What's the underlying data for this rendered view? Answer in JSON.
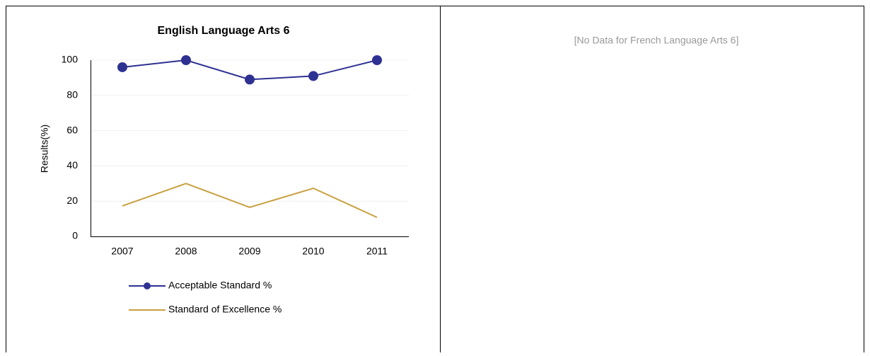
{
  "chart_data": {
    "type": "line",
    "title": "English Language Arts 6",
    "ylabel": "Results(%)",
    "categories": [
      "2007",
      "2008",
      "2009",
      "2010",
      "2011"
    ],
    "series": [
      {
        "name": "Acceptable Standard %",
        "color": "#2e3192",
        "markers": true,
        "values": [
          96,
          100,
          89,
          91,
          100
        ]
      },
      {
        "name": "Standard of Excellence %",
        "color": "#c9a040",
        "markers": false,
        "values": [
          17.3,
          30,
          16.5,
          27.3,
          10.8
        ]
      }
    ],
    "ylim": [
      0,
      100
    ],
    "yticks": [
      0,
      20,
      40,
      60,
      80,
      100
    ],
    "grid": true,
    "legend": "bottom"
  },
  "message": "[No Data for French Language Arts 6]"
}
